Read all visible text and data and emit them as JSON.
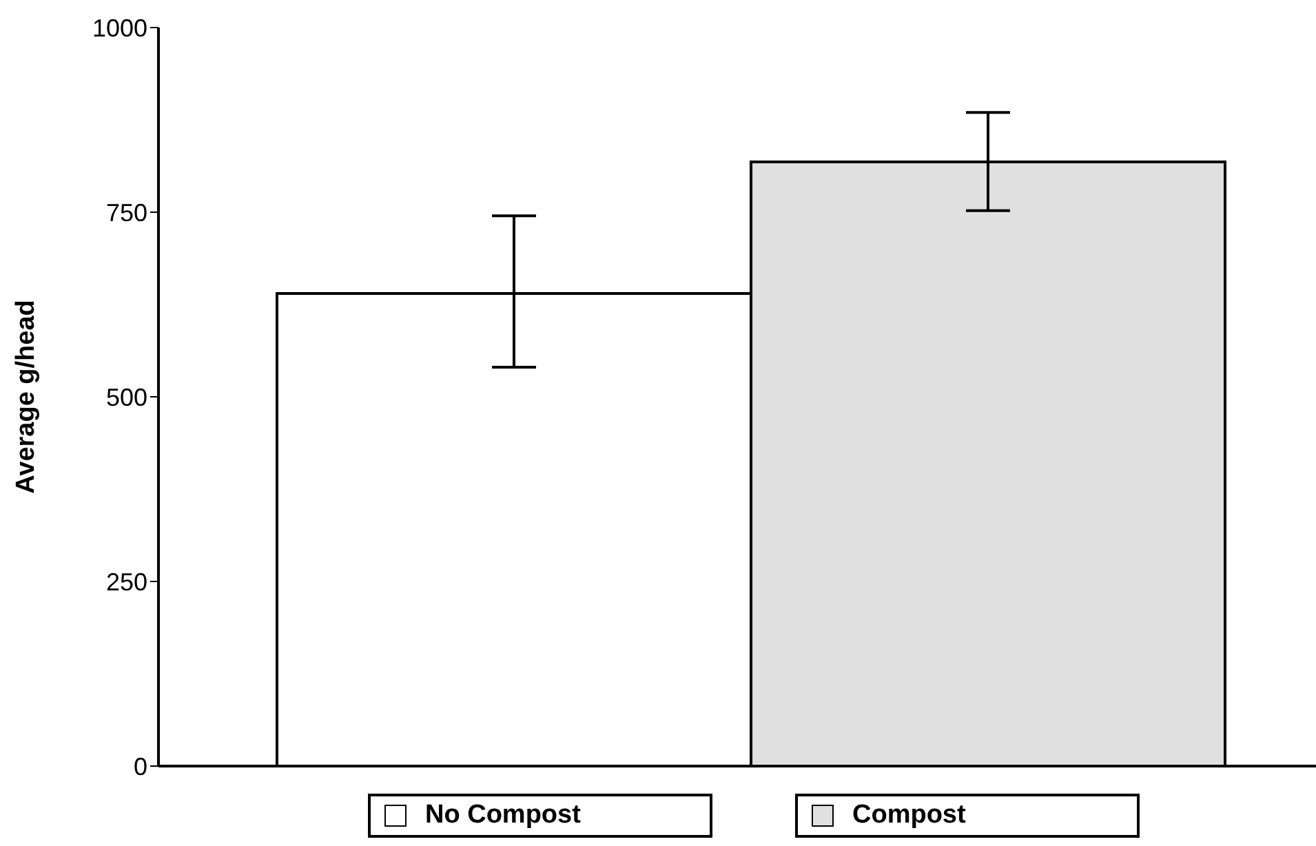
{
  "chart_data": {
    "type": "bar",
    "ylabel": "Average g/head",
    "categories": [
      null
    ],
    "series": [
      {
        "name": "No Compost",
        "color": "#ffffff",
        "values": [
          640
        ],
        "errors": [
          [
            540,
            745
          ]
        ]
      },
      {
        "name": "Compost",
        "color": "#e0e0e0",
        "values": [
          818
        ],
        "errors": [
          [
            752,
            885
          ]
        ]
      }
    ],
    "ylim": [
      0,
      1000
    ],
    "yticks": [
      0,
      250,
      500,
      750,
      1000
    ],
    "legend": "bottom",
    "grid": false
  }
}
